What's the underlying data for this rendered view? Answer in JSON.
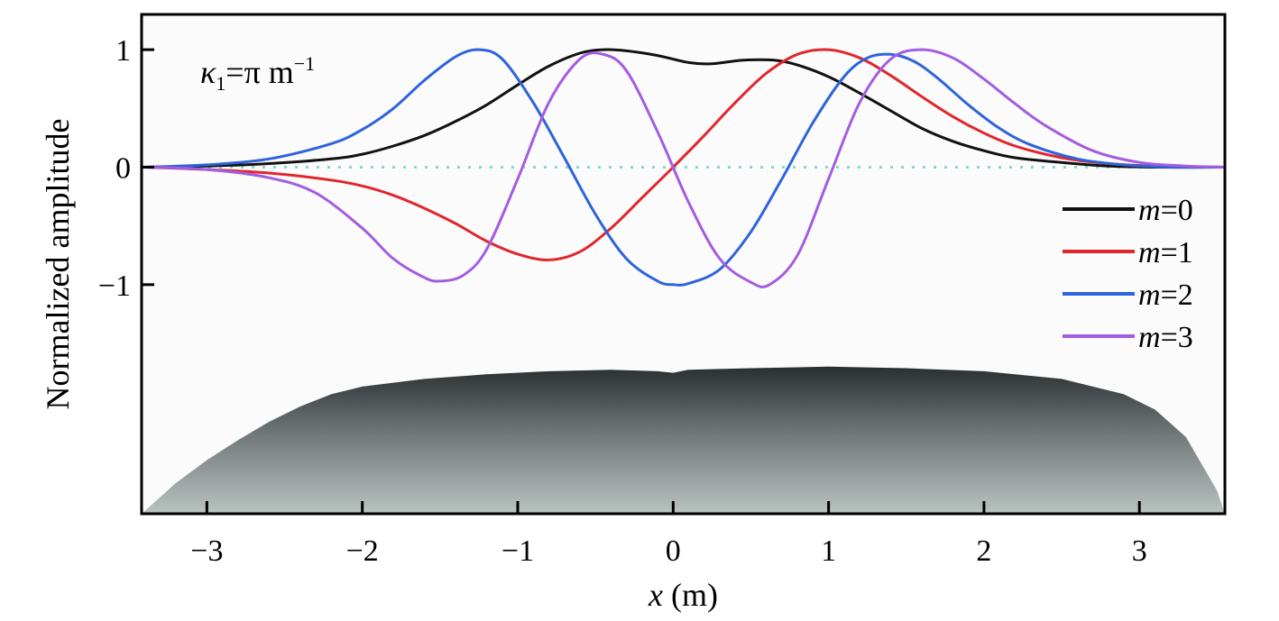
{
  "chart_data": {
    "type": "line",
    "title": "",
    "xlabel_var": "x",
    "xlabel_unit": " (m)",
    "ylabel": "Normalized amplitude",
    "xlim": [
      -3.42,
      3.55
    ],
    "ylim": [
      -2.95,
      1.3
    ],
    "x_ticks": [
      -3,
      -2,
      -1,
      0,
      1,
      2,
      3
    ],
    "x_tick_labels": [
      "−3",
      "−2",
      "−1",
      "0",
      "1",
      "2",
      "3"
    ],
    "y_ticks": [
      1,
      0,
      -1
    ],
    "y_tick_labels": [
      "1",
      "0",
      "−1"
    ],
    "grid": false,
    "legend_position": "right",
    "annotation": {
      "kappa": "κ",
      "sub": "1",
      "rest": "=π m",
      "sup": "−1"
    },
    "baseline": {
      "y": 0,
      "color": "#7fdccf",
      "style": "dotted"
    },
    "series": [
      {
        "name": "m=0",
        "label_var": "m",
        "label_rest": "=0",
        "color": "#111111",
        "x": [
          -3.4,
          -3.0,
          -2.6,
          -2.2,
          -2.0,
          -1.8,
          -1.6,
          -1.4,
          -1.2,
          -1.0,
          -0.8,
          -0.6,
          -0.45,
          -0.3,
          -0.1,
          0.1,
          0.25,
          0.45,
          0.65,
          0.8,
          1.0,
          1.2,
          1.4,
          1.6,
          1.8,
          2.0,
          2.2,
          2.5,
          2.8,
          3.1,
          3.55
        ],
        "y": [
          0.0,
          0.01,
          0.03,
          0.07,
          0.11,
          0.18,
          0.27,
          0.39,
          0.53,
          0.7,
          0.86,
          0.97,
          1.0,
          0.99,
          0.95,
          0.89,
          0.88,
          0.91,
          0.91,
          0.87,
          0.77,
          0.63,
          0.48,
          0.33,
          0.22,
          0.14,
          0.08,
          0.04,
          0.01,
          0.0,
          0.0
        ]
      },
      {
        "name": "m=1",
        "label_var": "m",
        "label_rest": "=1",
        "color": "#e1262d",
        "x": [
          -3.4,
          -3.0,
          -2.6,
          -2.2,
          -2.0,
          -1.8,
          -1.6,
          -1.4,
          -1.2,
          -1.0,
          -0.8,
          -0.6,
          -0.4,
          -0.2,
          0.0,
          0.2,
          0.4,
          0.6,
          0.8,
          1.0,
          1.2,
          1.4,
          1.6,
          1.8,
          2.0,
          2.2,
          2.5,
          2.8,
          3.1,
          3.55
        ],
        "y": [
          0.0,
          -0.02,
          -0.05,
          -0.11,
          -0.16,
          -0.24,
          -0.35,
          -0.48,
          -0.63,
          -0.74,
          -0.79,
          -0.72,
          -0.52,
          -0.26,
          0.0,
          0.27,
          0.55,
          0.8,
          0.96,
          1.0,
          0.93,
          0.78,
          0.6,
          0.43,
          0.29,
          0.18,
          0.08,
          0.03,
          0.01,
          0.0
        ]
      },
      {
        "name": "m=2",
        "label_var": "m",
        "label_rest": "=2",
        "color": "#2d63dc",
        "x": [
          -3.4,
          -3.0,
          -2.6,
          -2.2,
          -2.0,
          -1.8,
          -1.6,
          -1.4,
          -1.25,
          -1.1,
          -0.9,
          -0.7,
          -0.5,
          -0.3,
          -0.1,
          0.0,
          0.1,
          0.3,
          0.5,
          0.7,
          0.9,
          1.1,
          1.25,
          1.4,
          1.55,
          1.7,
          1.9,
          2.1,
          2.3,
          2.6,
          2.9,
          3.2,
          3.55
        ],
        "y": [
          0.0,
          0.02,
          0.07,
          0.2,
          0.32,
          0.5,
          0.74,
          0.94,
          1.0,
          0.92,
          0.55,
          0.08,
          -0.4,
          -0.78,
          -0.97,
          -1.0,
          -0.99,
          -0.87,
          -0.55,
          -0.1,
          0.38,
          0.77,
          0.93,
          0.96,
          0.9,
          0.76,
          0.53,
          0.33,
          0.19,
          0.07,
          0.02,
          0.0,
          0.0
        ]
      },
      {
        "name": "m=3",
        "label_var": "m",
        "label_rest": "=3",
        "color": "#a35de0",
        "x": [
          -3.4,
          -3.0,
          -2.6,
          -2.3,
          -2.0,
          -1.8,
          -1.6,
          -1.5,
          -1.35,
          -1.2,
          -1.0,
          -0.8,
          -0.6,
          -0.45,
          -0.3,
          -0.1,
          0.1,
          0.3,
          0.5,
          0.62,
          0.8,
          1.0,
          1.2,
          1.4,
          1.6,
          1.8,
          2.0,
          2.2,
          2.4,
          2.7,
          3.0,
          3.3,
          3.55
        ],
        "y": [
          0.0,
          -0.02,
          -0.09,
          -0.22,
          -0.52,
          -0.78,
          -0.94,
          -0.97,
          -0.92,
          -0.7,
          -0.1,
          0.55,
          0.92,
          0.96,
          0.82,
          0.3,
          -0.3,
          -0.78,
          -0.98,
          -1.0,
          -0.75,
          -0.1,
          0.55,
          0.92,
          1.0,
          0.93,
          0.75,
          0.54,
          0.35,
          0.14,
          0.04,
          0.01,
          0.0
        ]
      }
    ],
    "terrain_profile": {
      "x": [
        -3.42,
        -3.2,
        -3.0,
        -2.8,
        -2.6,
        -2.4,
        -2.2,
        -2.0,
        -1.6,
        -1.2,
        -0.8,
        -0.4,
        -0.1,
        0.0,
        0.1,
        0.5,
        1.0,
        1.5,
        2.0,
        2.5,
        2.9,
        3.1,
        3.3,
        3.5,
        3.55
      ],
      "height": [
        0.0,
        0.2,
        0.35,
        0.48,
        0.6,
        0.7,
        0.78,
        0.83,
        0.88,
        0.91,
        0.93,
        0.94,
        0.93,
        0.92,
        0.94,
        0.95,
        0.96,
        0.95,
        0.93,
        0.88,
        0.78,
        0.68,
        0.5,
        0.15,
        0.0
      ]
    }
  }
}
